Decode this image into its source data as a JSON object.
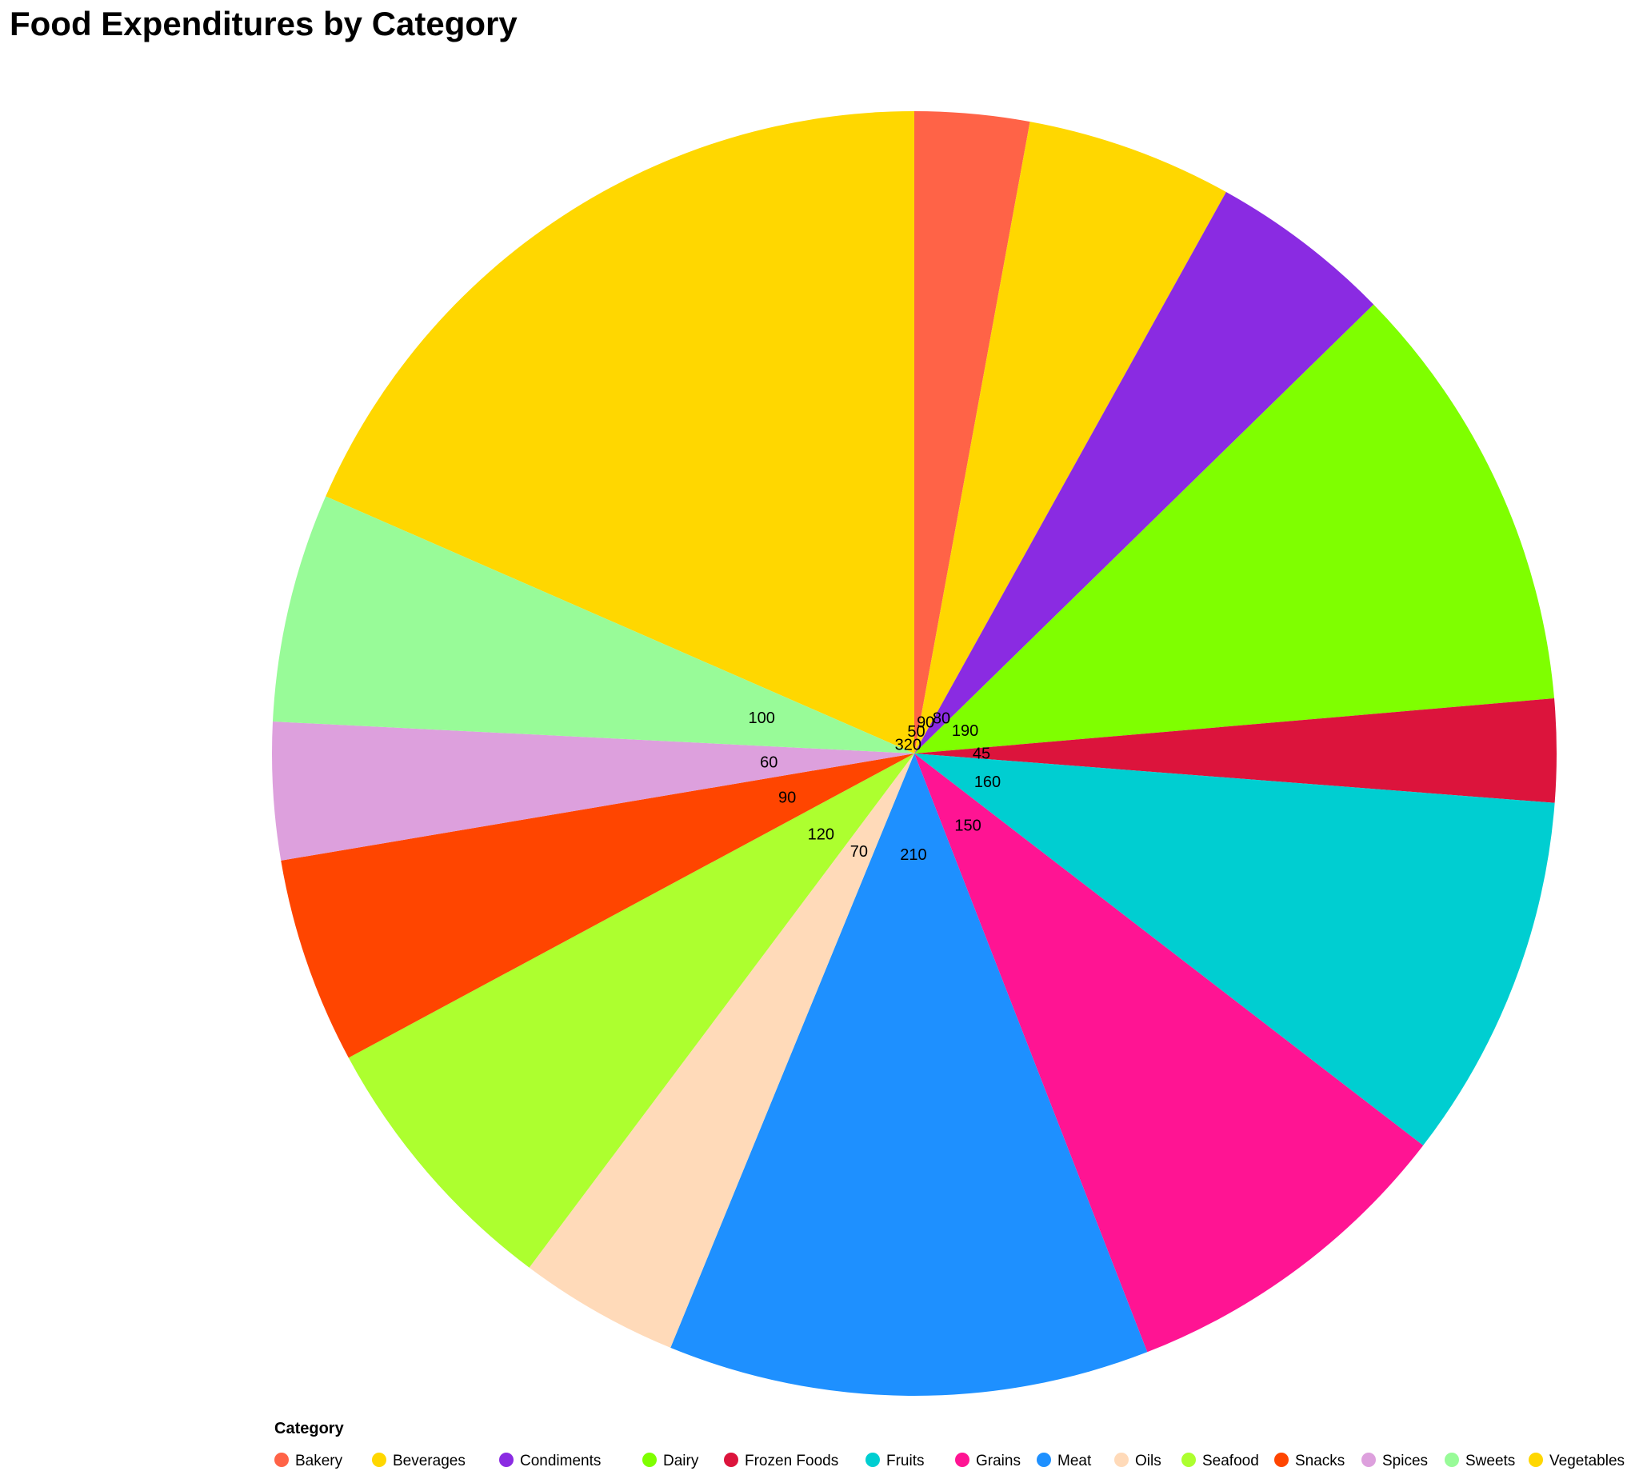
{
  "chart_data": {
    "type": "pie",
    "title": "Food Expenditures by Category",
    "legend_title": "Category",
    "legend_position": "bottom",
    "categories": [
      "Bakery",
      "Beverages",
      "Condiments",
      "Dairy",
      "Frozen Foods",
      "Fruits",
      "Grains",
      "Meat",
      "Oils",
      "Seafood",
      "Snacks",
      "Spices",
      "Sweets",
      "Vegetables"
    ],
    "slices": [
      {
        "category": "Vegetables",
        "value": 320,
        "color": "#FFD700"
      },
      {
        "category": "Bakery",
        "value": 50,
        "color": "#FF6347"
      },
      {
        "category": "Beverages",
        "value": 90,
        "color": "#FFD700"
      },
      {
        "category": "Condiments",
        "value": 80,
        "color": "#8A2BE2"
      },
      {
        "category": "Dairy",
        "value": 190,
        "color": "#7FFF00"
      },
      {
        "category": "Frozen Foods",
        "value": 45,
        "color": "#DC143C"
      },
      {
        "category": "Fruits",
        "value": 160,
        "color": "#00CED1"
      },
      {
        "category": "Grains",
        "value": 150,
        "color": "#FF1493"
      },
      {
        "category": "Meat",
        "value": 210,
        "color": "#1E90FF"
      },
      {
        "category": "Oils",
        "value": 70,
        "color": "#FFDAB9"
      },
      {
        "category": "Seafood",
        "value": 120,
        "color": "#ADFF2F"
      },
      {
        "category": "Snacks",
        "value": 90,
        "color": "#FF4500"
      },
      {
        "category": "Spices",
        "value": 60,
        "color": "#DDA0DD"
      },
      {
        "category": "Sweets",
        "value": 100,
        "color": "#98FB98"
      }
    ],
    "legend": [
      {
        "label": "Bakery",
        "color": "#FF6347"
      },
      {
        "label": "Beverages",
        "color": "#FFD700"
      },
      {
        "label": "Condiments",
        "color": "#8A2BE2"
      },
      {
        "label": "Dairy",
        "color": "#7FFF00"
      },
      {
        "label": "Frozen Foods",
        "color": "#DC143C"
      },
      {
        "label": "Fruits",
        "color": "#00CED1"
      },
      {
        "label": "Grains",
        "color": "#FF1493"
      },
      {
        "label": "Meat",
        "color": "#1E90FF"
      },
      {
        "label": "Oils",
        "color": "#FFDAB9"
      },
      {
        "label": "Seafood",
        "color": "#ADFF2F"
      },
      {
        "label": "Snacks",
        "color": "#FF4500"
      },
      {
        "label": "Spices",
        "color": "#DDA0DD"
      },
      {
        "label": "Sweets",
        "color": "#98FB98"
      },
      {
        "label": "Vegetables",
        "color": "#FFD700"
      }
    ]
  }
}
